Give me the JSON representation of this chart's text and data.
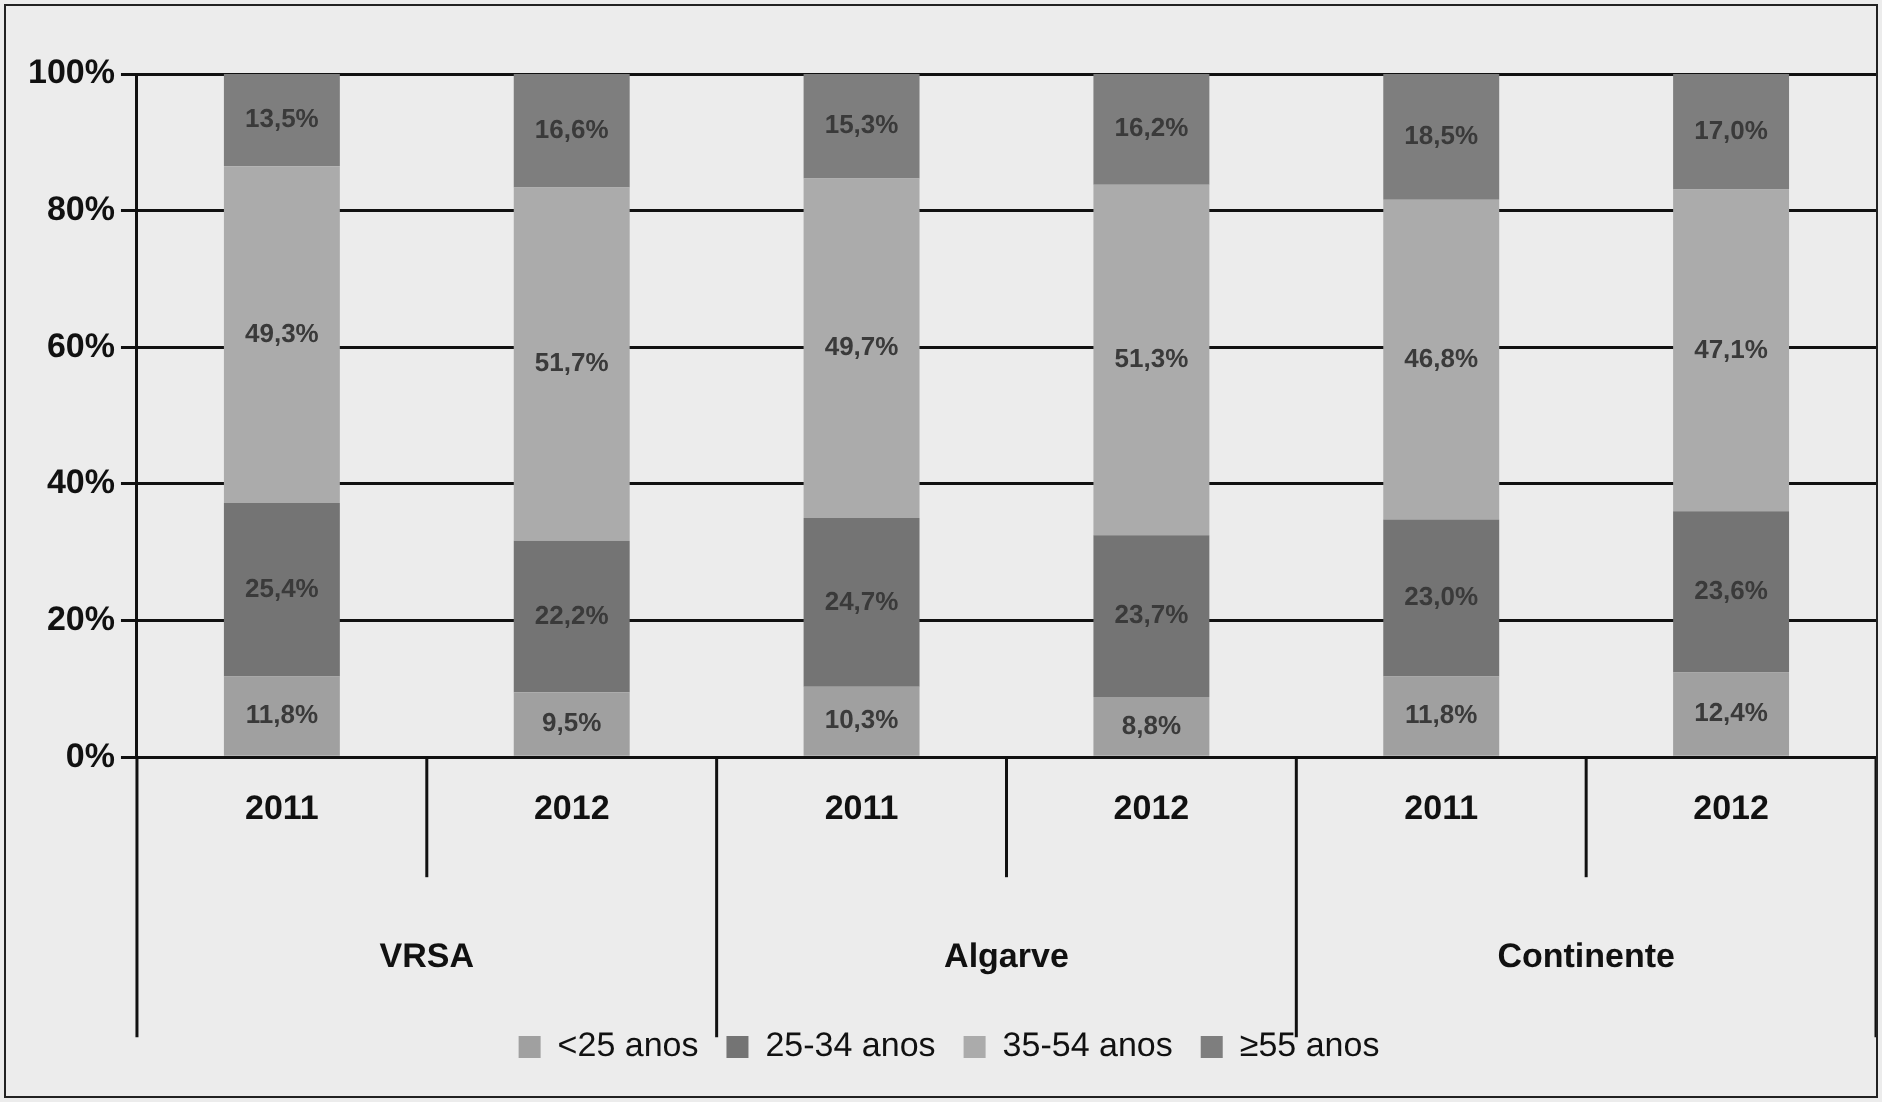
{
  "chart_data": {
    "type": "bar",
    "stacked": true,
    "categories": [
      "2011",
      "2012",
      "2011",
      "2012",
      "2011",
      "2012"
    ],
    "annotations": [
      "VRSA",
      "Algarve",
      "Continente"
    ],
    "series": [
      {
        "name": "<25 anos",
        "color": "#a0a0a0",
        "values": [
          11.8,
          9.5,
          10.3,
          8.8,
          11.8,
          12.4
        ],
        "value_labels": [
          "11,8%",
          "9,5%",
          "10,3%",
          "8,8%",
          "11,8%",
          "12,4%"
        ]
      },
      {
        "name": "25-34 anos",
        "color": "#747474",
        "values": [
          25.4,
          22.2,
          24.7,
          23.7,
          23.0,
          23.6
        ],
        "value_labels": [
          "25,4%",
          "22,2%",
          "24,7%",
          "23,7%",
          "23,0%",
          "23,6%"
        ]
      },
      {
        "name": "35-54 anos",
        "color": "#ababab",
        "values": [
          49.3,
          51.7,
          49.7,
          51.3,
          46.8,
          47.1
        ],
        "value_labels": [
          "49,3%",
          "51,7%",
          "49,7%",
          "51,3%",
          "46,8%",
          "47,1%"
        ]
      },
      {
        "name": "≥55 anos",
        "color": "#7e7e7e",
        "values": [
          13.5,
          16.6,
          15.3,
          16.2,
          18.5,
          17.0
        ],
        "value_labels": [
          "13,5%",
          "16,6%",
          "15,3%",
          "16,2%",
          "18,5%",
          "17,0%"
        ]
      }
    ],
    "ylim": [
      0,
      100
    ],
    "yticks": [
      {
        "value": 0,
        "label": "0%"
      },
      {
        "value": 20,
        "label": "20%"
      },
      {
        "value": 40,
        "label": "40%"
      },
      {
        "value": 60,
        "label": "60%"
      },
      {
        "value": 80,
        "label": "80%"
      },
      {
        "value": 100,
        "label": "100%"
      }
    ],
    "grid": "y",
    "legend": "bottom"
  }
}
